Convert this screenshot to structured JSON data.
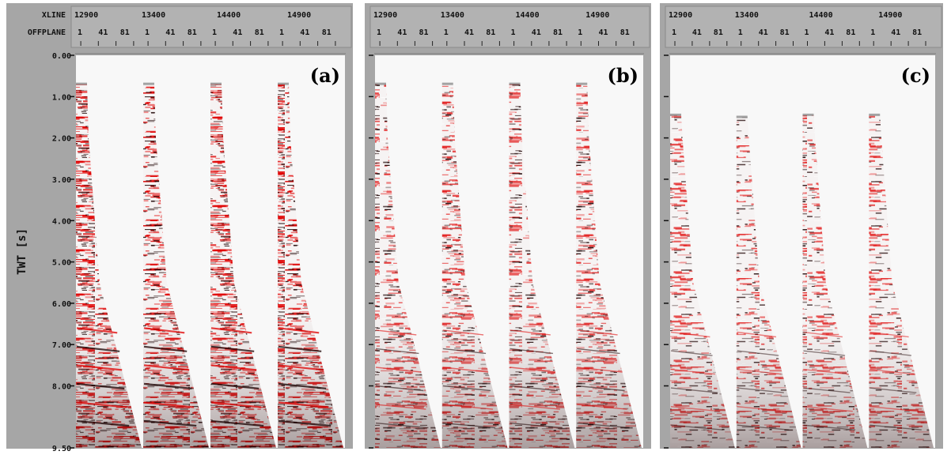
{
  "chart_data": {
    "type": "seismic-gather",
    "y_axis": {
      "label": "TWT [s]",
      "ticks": [
        0.0,
        1.0,
        2.0,
        3.0,
        4.0,
        5.0,
        6.0,
        7.0,
        8.0,
        9.5
      ],
      "tick_labels": [
        "0.00",
        "1.00",
        "2.00",
        "3.00",
        "4.00",
        "5.00",
        "6.00",
        "7.00",
        "8.00",
        "9.50"
      ],
      "range": [
        0.0,
        9.5
      ]
    },
    "header_rows": [
      {
        "name": "XLINE",
        "values": [
          "12900",
          "13400",
          "14400",
          "14900"
        ]
      },
      {
        "name": "OFFPLANE",
        "values": [
          "1",
          "41",
          "81"
        ]
      }
    ],
    "offplane_range": [
      1,
      100
    ],
    "colors": {
      "wiggle": "#e00000",
      "dark": "#1a0000",
      "background": "#f8f8f8",
      "frame": "#a6a6a6"
    },
    "panels": [
      {
        "label": "(a)",
        "data_start_time": [
          0.7,
          0.7,
          0.7,
          0.7
        ],
        "strength": 1.0
      },
      {
        "label": "(b)",
        "data_start_time": [
          0.7,
          0.7,
          0.7,
          0.7
        ],
        "strength": 0.6
      },
      {
        "label": "(c)",
        "data_start_time": [
          1.45,
          1.5,
          1.45,
          1.45
        ],
        "strength": 0.45
      }
    ]
  }
}
